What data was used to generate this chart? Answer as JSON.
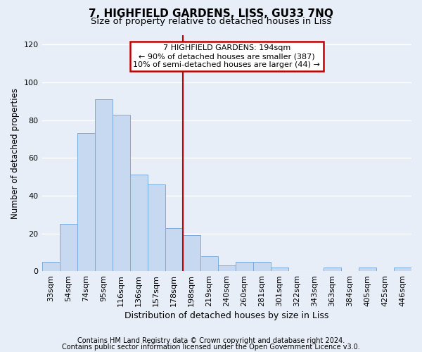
{
  "title": "7, HIGHFIELD GARDENS, LISS, GU33 7NQ",
  "subtitle": "Size of property relative to detached houses in Liss",
  "xlabel": "Distribution of detached houses by size in Liss",
  "ylabel": "Number of detached properties",
  "categories": [
    "33sqm",
    "54sqm",
    "74sqm",
    "95sqm",
    "116sqm",
    "136sqm",
    "157sqm",
    "178sqm",
    "198sqm",
    "219sqm",
    "240sqm",
    "260sqm",
    "281sqm",
    "301sqm",
    "322sqm",
    "343sqm",
    "363sqm",
    "384sqm",
    "405sqm",
    "425sqm",
    "446sqm"
  ],
  "values": [
    5,
    25,
    73,
    91,
    83,
    51,
    46,
    23,
    19,
    8,
    3,
    5,
    5,
    2,
    0,
    0,
    2,
    0,
    2,
    0,
    2
  ],
  "bar_color": "#c6d9f0",
  "bar_edge_color": "#7aaadc",
  "vline_color": "#c00000",
  "vline_x_idx": 8,
  "annotation_text_line1": "7 HIGHFIELD GARDENS: 194sqm",
  "annotation_text_line2": "← 90% of detached houses are smaller (387)",
  "annotation_text_line3": "10% of semi-detached houses are larger (44) →",
  "annotation_box_facecolor": "#ffffff",
  "annotation_box_edgecolor": "#c00000",
  "ylim": [
    0,
    125
  ],
  "yticks": [
    0,
    20,
    40,
    60,
    80,
    100,
    120
  ],
  "background_color": "#e8eef7",
  "grid_color": "#ffffff",
  "title_fontsize": 11,
  "subtitle_fontsize": 9.5,
  "xlabel_fontsize": 9,
  "ylabel_fontsize": 8.5,
  "tick_fontsize": 8,
  "annot_fontsize": 8,
  "footer_fontsize": 7,
  "footer_line1": "Contains HM Land Registry data © Crown copyright and database right 2024.",
  "footer_line2": "Contains public sector information licensed under the Open Government Licence v3.0."
}
